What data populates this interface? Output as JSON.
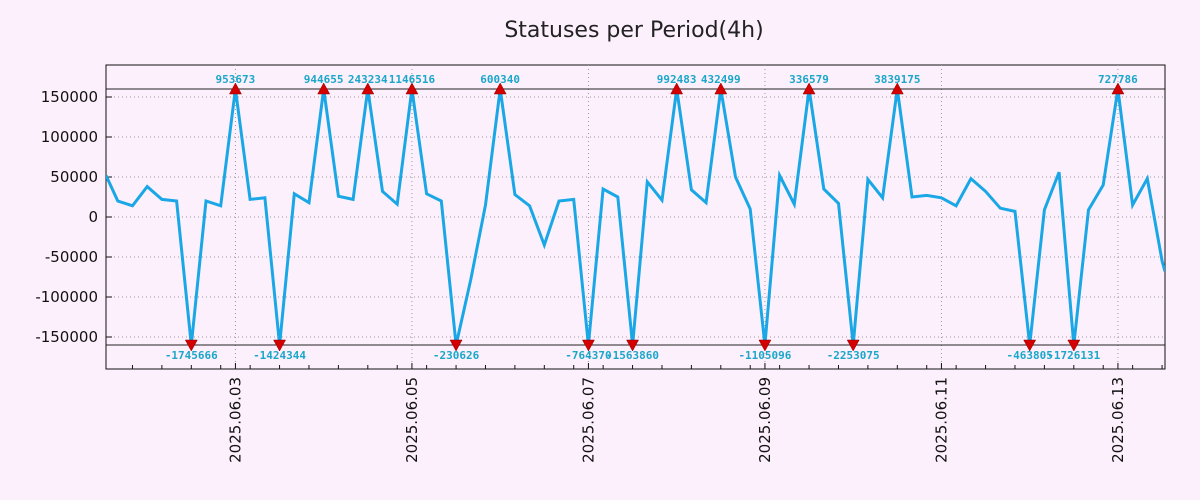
{
  "chart_data": {
    "type": "line",
    "title": "Statuses per Period(4h)",
    "xlabel": "",
    "ylabel": "",
    "ylim": [
      -190000,
      190000
    ],
    "yticks": [
      -150000,
      -100000,
      -50000,
      0,
      50000,
      100000,
      150000
    ],
    "ytick_labels": [
      "-150000",
      "-100000",
      "-50000",
      "0",
      "50000",
      "100000",
      "150000"
    ],
    "xticks": [
      {
        "pos": 3,
        "label": "2025.06.03"
      },
      {
        "pos": 15,
        "label": "2025.06.05"
      },
      {
        "pos": 27,
        "label": "2025.06.07"
      },
      {
        "pos": 39,
        "label": "2025.06.09"
      },
      {
        "pos": 51,
        "label": "2025.06.11"
      },
      {
        "pos": 63,
        "label": "2025.06.13"
      }
    ],
    "xlim": [
      -5.8,
      66.2
    ],
    "clip_level": 160000,
    "reference_lines": [
      160000,
      -160000
    ],
    "grid": true,
    "series": [
      {
        "color": "#1aa7e6",
        "x": [
          -5.8,
          -5,
          -4,
          -3,
          -2,
          -1,
          0,
          1,
          2,
          3,
          4,
          5,
          6,
          7,
          8,
          9,
          10,
          11,
          12,
          13,
          14,
          15,
          16,
          17,
          18,
          19,
          20,
          21,
          22,
          23,
          24,
          25,
          26,
          27,
          28,
          29,
          30,
          31,
          32,
          33,
          34,
          35,
          36,
          37,
          38,
          39,
          40,
          41,
          42,
          43,
          44,
          45,
          46,
          47,
          48,
          49,
          50,
          51,
          52,
          53,
          54,
          55,
          56,
          57,
          58,
          59,
          60,
          61,
          62,
          63,
          64,
          65,
          66,
          66.2
        ],
        "y": [
          52000,
          20000,
          14000,
          38000,
          22000,
          20000,
          -160000,
          20000,
          14000,
          160000,
          22000,
          24000,
          -160000,
          29000,
          18000,
          160000,
          26000,
          22000,
          160000,
          32000,
          16000,
          160000,
          29000,
          20000,
          -160000,
          -78000,
          15000,
          160000,
          28000,
          14000,
          -35000,
          20000,
          22000,
          -160000,
          35000,
          25000,
          -160000,
          44000,
          21000,
          160000,
          34000,
          18000,
          160000,
          50000,
          10000,
          -160000,
          52000,
          16000,
          160000,
          35000,
          17000,
          -160000,
          47000,
          24000,
          160000,
          25000,
          27000,
          24000,
          14000,
          48000,
          32000,
          11000,
          7000,
          -160000,
          9000,
          56000,
          -160000,
          9000,
          40000,
          160000,
          15000,
          48000,
          -55000,
          -68000
        ]
      }
    ],
    "peaks": [
      {
        "x": 3,
        "label": "953673"
      },
      {
        "x": 9,
        "label": "944655"
      },
      {
        "x": 12,
        "label": "243234"
      },
      {
        "x": 15,
        "label": "1146516"
      },
      {
        "x": 21,
        "label": "600340"
      },
      {
        "x": 33,
        "label": "992483"
      },
      {
        "x": 36,
        "label": "432499"
      },
      {
        "x": 42,
        "label": "336579"
      },
      {
        "x": 48,
        "label": "3839175"
      },
      {
        "x": 63,
        "label": "727786"
      }
    ],
    "troughs": [
      {
        "x": 0,
        "label": "-1745666"
      },
      {
        "x": 6,
        "label": "-1424344"
      },
      {
        "x": 18,
        "label": "-230626"
      },
      {
        "x": 27,
        "label": "-764370"
      },
      {
        "x": 30,
        "label": "-1563860"
      },
      {
        "x": 39,
        "label": "-1105096"
      },
      {
        "x": 45,
        "label": "-2253075"
      },
      {
        "x": 57,
        "label": "-463805"
      },
      {
        "x": 60,
        "label": "-1726131"
      }
    ]
  }
}
